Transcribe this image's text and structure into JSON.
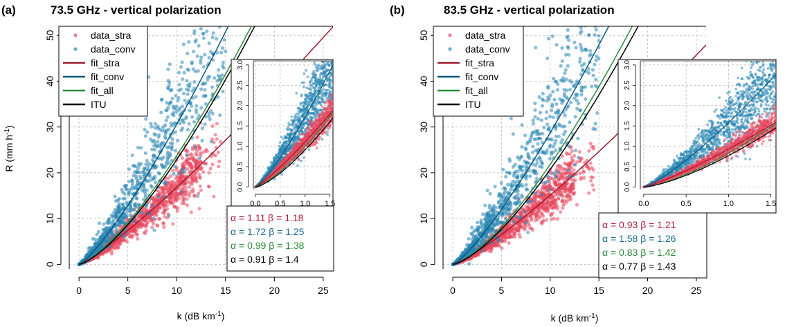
{
  "chart_data": [
    {
      "panel_label": "(a)",
      "title": "73.5 GHz - vertical polarization",
      "type": "scatter",
      "xlabel": "k (dB km",
      "xlabel_sup": "-1",
      "xlabel_close": ")",
      "ylabel": "R (mm h",
      "ylabel_sup": "-1",
      "ylabel_close": ")",
      "xlim": [
        -1,
        26
      ],
      "ylim": [
        -1,
        52
      ],
      "xticks": [
        0,
        5,
        10,
        15,
        20,
        25
      ],
      "yticks": [
        0,
        10,
        20,
        30,
        40,
        50
      ],
      "grid": true,
      "legend_position": "top-left",
      "legend": [
        {
          "label": "data_stra",
          "kind": "point",
          "color": "#e8485e"
        },
        {
          "label": "data_conv",
          "kind": "point",
          "color": "#2a86b4"
        },
        {
          "label": "fit_stra",
          "kind": "line",
          "color": "#9b1b30"
        },
        {
          "label": "fit_conv",
          "kind": "line",
          "color": "#0b5777"
        },
        {
          "label": "fit_all",
          "kind": "line",
          "color": "#2a8a3a"
        },
        {
          "label": "ITU",
          "kind": "line",
          "color": "#000000"
        }
      ],
      "series": [
        {
          "name": "fit_stra",
          "alpha": 1.11,
          "beta": 1.18,
          "color": "#9b1b30"
        },
        {
          "name": "fit_conv",
          "alpha": 1.72,
          "beta": 1.25,
          "color": "#0b5777"
        },
        {
          "name": "fit_all",
          "alpha": 0.99,
          "beta": 1.38,
          "color": "#2a8a3a"
        },
        {
          "name": "ITU",
          "alpha": 0.91,
          "beta": 1.4,
          "color": "#000000"
        }
      ],
      "coefficients": [
        {
          "alpha": "1.11",
          "beta": "1.18",
          "color": "#b01e3a"
        },
        {
          "alpha": "1.72",
          "beta": "1.25",
          "color": "#1a6a90"
        },
        {
          "alpha": "0.99",
          "beta": "1.38",
          "color": "#2a8a3a"
        },
        {
          "alpha": "0.91",
          "beta": "1.4",
          "color": "#000000"
        }
      ],
      "inset": {
        "xlim": [
          -0.04,
          1.56
        ],
        "ylim": [
          -0.06,
          3.1
        ],
        "xticks": [
          0,
          0.5,
          1,
          1.5
        ],
        "xtick_labels": [
          "0.0",
          "0.5",
          "1.0",
          "1.5"
        ],
        "yticks": [
          0,
          0.5,
          1,
          1.5,
          2,
          2.5,
          3
        ],
        "ytick_labels": [
          "0.0",
          "0.5",
          "1.0",
          "1.5",
          "2.0",
          "2.5",
          "3.0"
        ]
      }
    },
    {
      "panel_label": "(b)",
      "title": "83.5 GHz - vertical polarization",
      "type": "scatter",
      "xlabel": "k (dB km",
      "xlabel_sup": "-1",
      "xlabel_close": ")",
      "ylabel": "",
      "ylabel_sup": "",
      "ylabel_close": "",
      "xlim": [
        -1,
        26
      ],
      "ylim": [
        -1,
        52
      ],
      "xticks": [
        0,
        5,
        10,
        15,
        20,
        25
      ],
      "yticks": [
        0,
        10,
        20,
        30,
        40,
        50
      ],
      "grid": true,
      "legend_position": "top-left",
      "legend": [
        {
          "label": "data_stra",
          "kind": "point",
          "color": "#e8485e"
        },
        {
          "label": "data_conv",
          "kind": "point",
          "color": "#2a86b4"
        },
        {
          "label": "fit_stra",
          "kind": "line",
          "color": "#9b1b30"
        },
        {
          "label": "fit_conv",
          "kind": "line",
          "color": "#0b5777"
        },
        {
          "label": "fit_all",
          "kind": "line",
          "color": "#2a8a3a"
        },
        {
          "label": "ITU",
          "kind": "line",
          "color": "#000000"
        }
      ],
      "series": [
        {
          "name": "fit_stra",
          "alpha": 0.93,
          "beta": 1.21,
          "color": "#9b1b30"
        },
        {
          "name": "fit_conv",
          "alpha": 1.58,
          "beta": 1.26,
          "color": "#0b5777"
        },
        {
          "name": "fit_all",
          "alpha": 0.83,
          "beta": 1.42,
          "color": "#2a8a3a"
        },
        {
          "name": "ITU",
          "alpha": 0.77,
          "beta": 1.43,
          "color": "#000000"
        }
      ],
      "coefficients": [
        {
          "alpha": "0.93",
          "beta": "1.21",
          "color": "#b01e3a"
        },
        {
          "alpha": "1.58",
          "beta": "1.26",
          "color": "#1a6a90"
        },
        {
          "alpha": "0.83",
          "beta": "1.42",
          "color": "#2a8a3a"
        },
        {
          "alpha": "0.77",
          "beta": "1.43",
          "color": "#000000"
        }
      ],
      "inset": {
        "xlim": [
          -0.04,
          1.56
        ],
        "ylim": [
          -0.06,
          3.1
        ],
        "xticks": [
          0,
          0.5,
          1,
          1.5
        ],
        "xtick_labels": [
          "0.0",
          "0.5",
          "1.0",
          "1.5"
        ],
        "yticks": [
          0,
          0.5,
          1,
          1.5,
          2,
          2.5,
          3
        ],
        "ytick_labels": [
          "0.0",
          "0.5",
          "1.0",
          "1.5",
          "2.0",
          "2.5",
          "3.0"
        ]
      }
    }
  ],
  "colors": {
    "stra_points": "#e8485e",
    "conv_points": "#2a86b4",
    "grid": "#b8b8b8"
  }
}
